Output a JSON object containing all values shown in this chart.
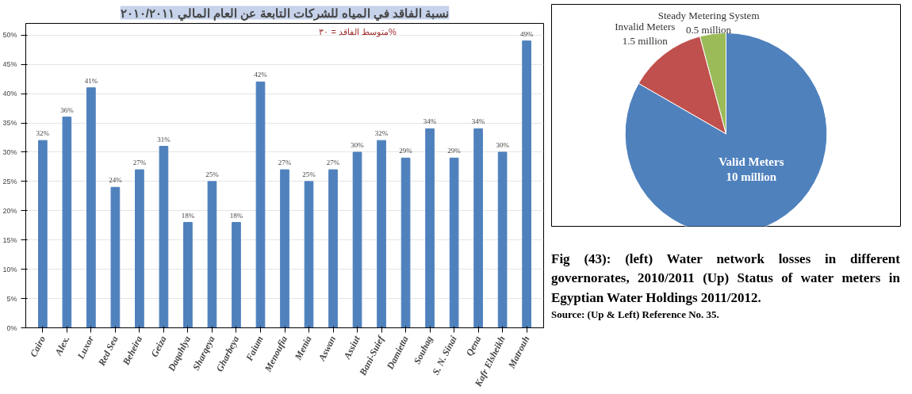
{
  "chart_data": [
    {
      "type": "bar",
      "title": "نسبة الفاقد في المياه للشركات التابعة عن العام المالي ٢٠١٠/٢٠١١",
      "categories": [
        "Cairo",
        "Alex.",
        "Luxor",
        "Red Sea",
        "Beheira",
        "Geiza",
        "Daqahlya",
        "Sharqeya",
        "Gharbeya",
        "Faium",
        "Menoufia",
        "Menia",
        "Aswan",
        "Assiut",
        "Bani-Suief",
        "Damietta",
        "Souhag",
        "S. N. Sinai",
        "Qena",
        "Kafr Elsheikh",
        "Matrouh"
      ],
      "values": [
        32,
        36,
        41,
        24,
        27,
        31,
        18,
        25,
        18,
        42,
        27,
        25,
        27,
        30,
        32,
        29,
        34,
        29,
        34,
        30,
        49
      ],
      "value_labels": [
        "32%",
        "36%",
        "41%",
        "24%",
        "27%",
        "31%",
        "18%",
        "25%",
        "18%",
        "42%",
        "27%",
        "25%",
        "27%",
        "30%",
        "32%",
        "29%",
        "34%",
        "29%",
        "34%",
        "30%",
        "49%"
      ],
      "color": "#4f81bd",
      "ylim": [
        0,
        52
      ],
      "yticks": [
        {
          "value": 0,
          "label": "0%"
        },
        {
          "value": 5,
          "label": "5%"
        },
        {
          "value": 10,
          "label": "10%"
        },
        {
          "value": 15,
          "label": "15%"
        },
        {
          "value": 20,
          "label": "20%"
        },
        {
          "value": 25,
          "label": "25%"
        },
        {
          "value": 30,
          "label": "30%"
        },
        {
          "value": 35,
          "label": "35%"
        },
        {
          "value": 40,
          "label": "40%"
        },
        {
          "value": 45,
          "label": "45%"
        },
        {
          "value": 50,
          "label": "50%"
        }
      ],
      "grid": "y",
      "annotations": [
        "متوسط الفاقد = ٣٠%"
      ]
    },
    {
      "type": "pie",
      "categories": [
        "Valid Meters",
        "Invalid Meters",
        "Steady Metering System"
      ],
      "values": [
        10,
        1.5,
        0.5
      ],
      "value_labels": [
        "10 million",
        "1.5 million",
        "0.5 million"
      ],
      "colors": [
        "#4f81bd",
        "#c0504d",
        "#9bbb59"
      ],
      "annotations": [
        "Fig (43): (left) Water network losses in different governorates, 2010/2011 (Up) Status of water meters in Egyptian Water Holdings 2011/2012.",
        "Source: (Up & Left) Reference No. 35."
      ]
    }
  ]
}
